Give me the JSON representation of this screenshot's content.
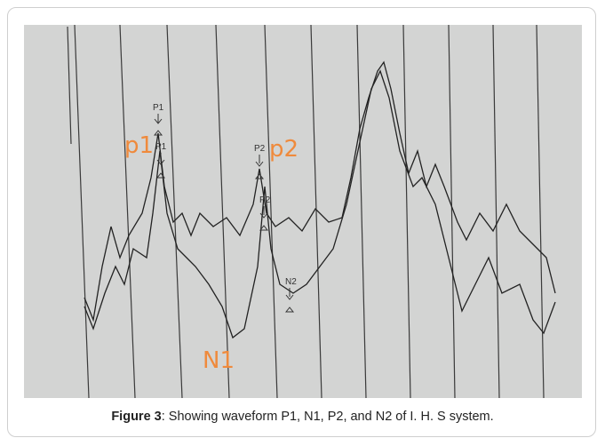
{
  "figure": {
    "label": "Figure 3",
    "caption": ": Showing waveform P1, N1, P2, and N2 of I. H. S system.",
    "handwritten": [
      "p1",
      "p2",
      "N1"
    ],
    "markers": [
      "P1",
      "P1",
      "P2",
      "P2",
      "N2"
    ]
  }
}
